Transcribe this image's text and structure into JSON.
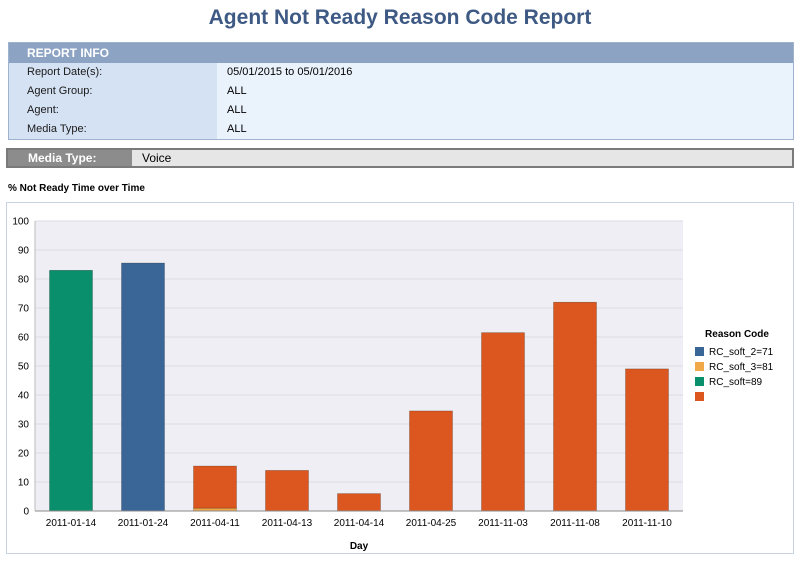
{
  "report": {
    "title": "Agent Not Ready Reason Code Report",
    "info_header": "REPORT INFO",
    "rows": [
      {
        "label": "Report Date(s):",
        "value": "05/01/2015 to 05/01/2016"
      },
      {
        "label": "Agent Group:",
        "value": "ALL"
      },
      {
        "label": "Agent:",
        "value": "ALL"
      },
      {
        "label": "Media Type:",
        "value": "ALL"
      }
    ],
    "media_label": "Media Type:",
    "media_value": "Voice",
    "chart_title": "% Not Ready Time over Time"
  },
  "chart_data": {
    "type": "bar",
    "stacked": true,
    "categories": [
      "2011-01-14",
      "2011-01-24",
      "2011-04-11",
      "2011-04-13",
      "2011-04-14",
      "2011-04-25",
      "2011-11-03",
      "2011-11-08",
      "2011-11-10"
    ],
    "series": [
      {
        "name": "RC_soft_2=71",
        "color": "#3a6597",
        "values": [
          0,
          85.5,
          0,
          0,
          0,
          0,
          0,
          0,
          0
        ]
      },
      {
        "name": "RC_soft_3=81",
        "color": "#f0a848",
        "values": [
          0,
          0,
          1,
          0,
          0,
          0,
          0,
          0,
          0
        ]
      },
      {
        "name": "RC_soft=89",
        "color": "#0a8f6c",
        "values": [
          83,
          0,
          0,
          0,
          0,
          0,
          0,
          0,
          0
        ]
      },
      {
        "name": "",
        "color": "#dc571f",
        "values": [
          0,
          0,
          14.5,
          14,
          6,
          34.5,
          61.5,
          72,
          49
        ]
      }
    ],
    "xlabel": "Day",
    "ylabel": "",
    "ylim": [
      0,
      100
    ],
    "yticks": [
      0,
      10,
      20,
      30,
      40,
      50,
      60,
      70,
      80,
      90,
      100
    ],
    "grid": true,
    "legend_title": "Reason Code",
    "legend_position": "right"
  }
}
